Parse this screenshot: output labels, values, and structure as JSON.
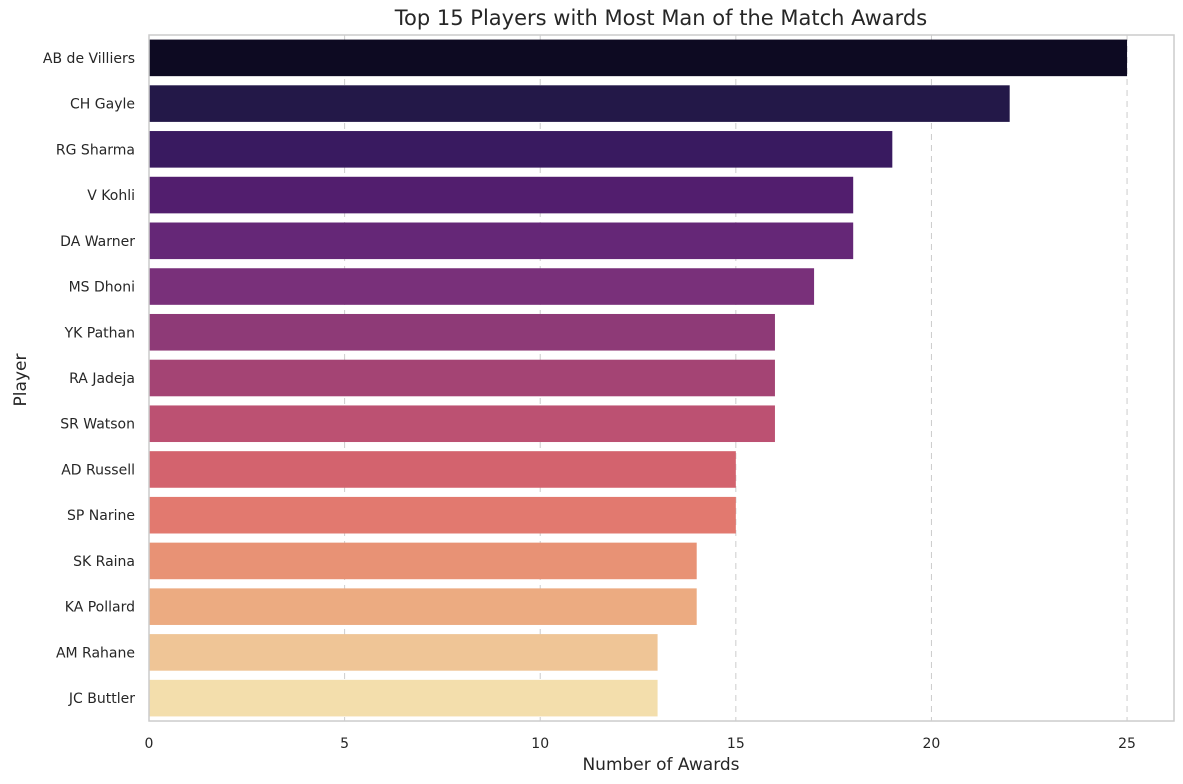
{
  "chart_data": {
    "type": "bar",
    "orientation": "horizontal",
    "title": "Top 15 Players with Most Man of the Match Awards",
    "xlabel": "Number of Awards",
    "ylabel": "Player",
    "xlim": [
      0,
      26.2
    ],
    "x_ticks": [
      0,
      5,
      10,
      15,
      20,
      25
    ],
    "grid": "x-axis dashed",
    "categories": [
      "AB de Villiers",
      "CH Gayle",
      "RG Sharma",
      "V Kohli",
      "DA Warner",
      "MS Dhoni",
      "YK Pathan",
      "RA Jadeja",
      "SR Watson",
      "AD Russell",
      "SP Narine",
      "SK Raina",
      "KA Pollard",
      "AM Rahane",
      "JC Buttler"
    ],
    "values": [
      25,
      22,
      19,
      18,
      18,
      17,
      16,
      16,
      16,
      15,
      15,
      14,
      14,
      13,
      13
    ],
    "colors": [
      "#0d0a22",
      "#231848",
      "#391a60",
      "#521e6e",
      "#652777",
      "#79307a",
      "#8e3a77",
      "#a44474",
      "#bc5172",
      "#d3636e",
      "#e2796f",
      "#e89275",
      "#ecab81",
      "#efc596",
      "#f3deac"
    ]
  }
}
